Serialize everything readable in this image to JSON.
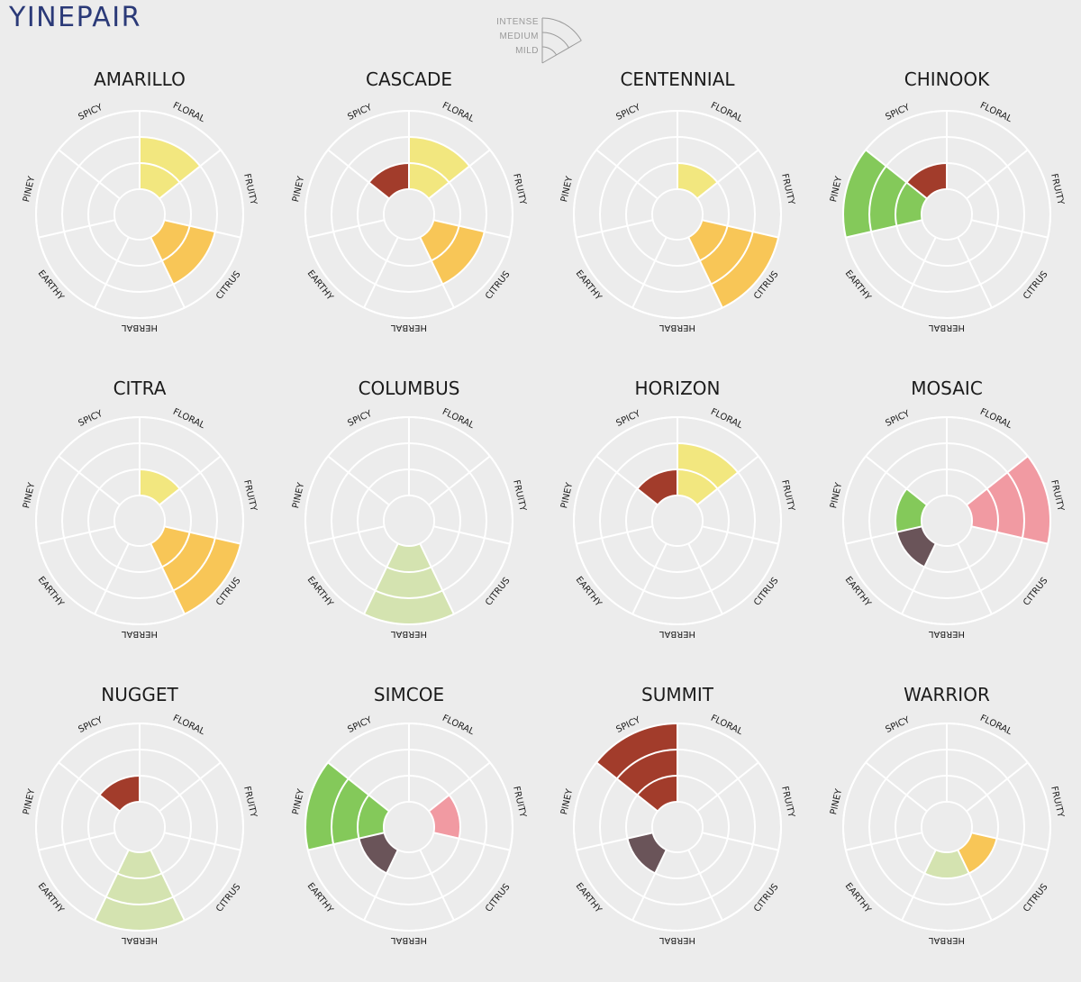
{
  "brand": {
    "name": "YINEPAIR"
  },
  "colors": {
    "background": "#ececec",
    "wheel_fill": "#ececec",
    "grid": "#ffffff",
    "floral": "#f2e77f",
    "fruity": "#f19aa2",
    "citrus": "#f8c657",
    "herbal": "#d4e3b0",
    "earthy": "#6a5459",
    "piney": "#84c95a",
    "spicy": "#a23c2b"
  },
  "legend": {
    "levels": [
      "INTENSE",
      "MEDIUM",
      "MILD"
    ]
  },
  "chart_data": {
    "type": "radial-bar",
    "axes": [
      "FLORAL",
      "FRUITY",
      "CITRUS",
      "HERBAL",
      "EARTHY",
      "PINEY",
      "SPICY"
    ],
    "scale": {
      "min": 0,
      "max": 3,
      "levels": {
        "1": "MILD",
        "2": "MEDIUM",
        "3": "INTENSE"
      }
    },
    "hops": [
      {
        "name": "AMARILLO",
        "values": {
          "FLORAL": 2,
          "FRUITY": 0,
          "CITRUS": 2,
          "HERBAL": 0,
          "EARTHY": 0,
          "PINEY": 0,
          "SPICY": 0
        }
      },
      {
        "name": "CASCADE",
        "values": {
          "FLORAL": 2,
          "FRUITY": 0,
          "CITRUS": 2,
          "HERBAL": 0,
          "EARTHY": 0,
          "PINEY": 0,
          "SPICY": 1
        }
      },
      {
        "name": "CENTENNIAL",
        "values": {
          "FLORAL": 1,
          "FRUITY": 0,
          "CITRUS": 3,
          "HERBAL": 0,
          "EARTHY": 0,
          "PINEY": 0,
          "SPICY": 0
        }
      },
      {
        "name": "CHINOOK",
        "values": {
          "FLORAL": 0,
          "FRUITY": 0,
          "CITRUS": 0,
          "HERBAL": 0,
          "EARTHY": 0,
          "PINEY": 3,
          "SPICY": 1
        }
      },
      {
        "name": "CITRA",
        "values": {
          "FLORAL": 1,
          "FRUITY": 0,
          "CITRUS": 3,
          "HERBAL": 0,
          "EARTHY": 0,
          "PINEY": 0,
          "SPICY": 0
        }
      },
      {
        "name": "COLUMBUS",
        "values": {
          "FLORAL": 0,
          "FRUITY": 0,
          "CITRUS": 0,
          "HERBAL": 3,
          "EARTHY": 0,
          "PINEY": 0,
          "SPICY": 0
        }
      },
      {
        "name": "HORIZON",
        "values": {
          "FLORAL": 2,
          "FRUITY": 0,
          "CITRUS": 0,
          "HERBAL": 0,
          "EARTHY": 0,
          "PINEY": 0,
          "SPICY": 1
        }
      },
      {
        "name": "MOSAIC",
        "values": {
          "FLORAL": 0,
          "FRUITY": 3,
          "CITRUS": 0,
          "HERBAL": 0,
          "EARTHY": 1,
          "PINEY": 1,
          "SPICY": 0
        }
      },
      {
        "name": "NUGGET",
        "values": {
          "FLORAL": 0,
          "FRUITY": 0,
          "CITRUS": 0,
          "HERBAL": 3,
          "EARTHY": 0,
          "PINEY": 0,
          "SPICY": 1
        }
      },
      {
        "name": "SIMCOE",
        "values": {
          "FLORAL": 0,
          "FRUITY": 1,
          "CITRUS": 0,
          "HERBAL": 0,
          "EARTHY": 1,
          "PINEY": 3,
          "SPICY": 0
        }
      },
      {
        "name": "SUMMIT",
        "values": {
          "FLORAL": 0,
          "FRUITY": 0,
          "CITRUS": 0,
          "HERBAL": 0,
          "EARTHY": 1,
          "PINEY": 0,
          "SPICY": 3
        }
      },
      {
        "name": "WARRIOR",
        "values": {
          "FLORAL": 0,
          "FRUITY": 0,
          "CITRUS": 1,
          "HERBAL": 1,
          "EARTHY": 0,
          "PINEY": 0,
          "SPICY": 0
        }
      }
    ]
  }
}
